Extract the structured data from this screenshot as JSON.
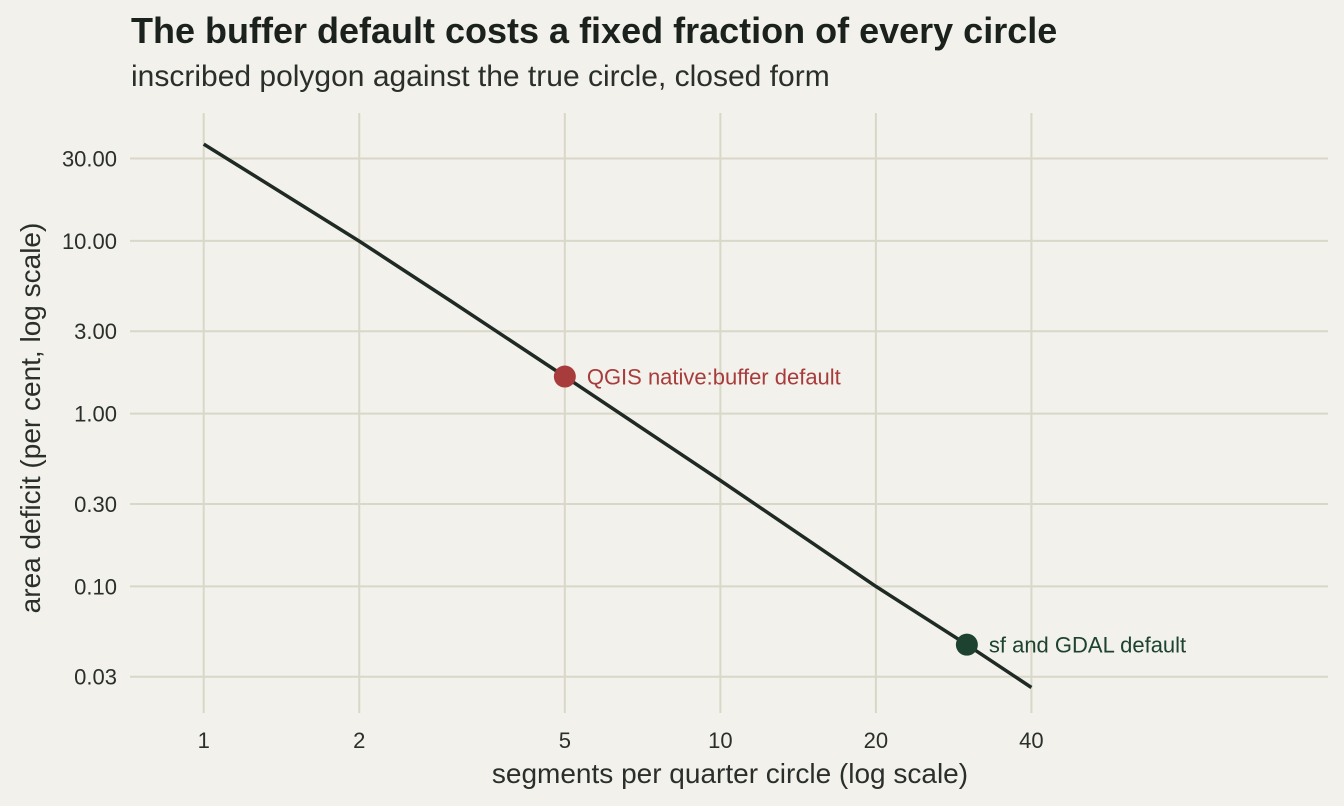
{
  "chart_data": {
    "type": "line",
    "title": "The buffer default costs a fixed fraction of every circle",
    "subtitle": "inscribed polygon against the true circle, closed form",
    "xlabel": "segments per quarter circle (log scale)",
    "ylabel": "area deficit (per cent, log scale)",
    "x_scale": "log",
    "y_scale": "log",
    "xlim": [
      0.72,
      150
    ],
    "ylim": [
      0.0185,
      55
    ],
    "x_ticks": [
      1,
      2,
      5,
      10,
      20,
      40
    ],
    "x_tick_labels": [
      "1",
      "2",
      "5",
      "10",
      "20",
      "40"
    ],
    "y_ticks": [
      30,
      10,
      3,
      1,
      0.3,
      0.1,
      0.03
    ],
    "y_tick_labels": [
      "30.00",
      "10.00",
      "3.00",
      "1.00",
      "0.30",
      "0.10",
      "0.03"
    ],
    "grid": true,
    "series": [
      {
        "x": [
          1,
          2,
          3,
          5,
          8,
          10,
          15,
          20,
          30,
          40
        ],
        "y": [
          36.34,
          9.97,
          4.51,
          1.64,
          0.64,
          0.41,
          0.18,
          0.1,
          0.046,
          0.026
        ],
        "color": "#1f2a24"
      }
    ],
    "annotations": [
      {
        "x": 5,
        "y": 1.64,
        "label": "QGIS native:buffer default",
        "color": "#a83c3c"
      },
      {
        "x": 30,
        "y": 0.046,
        "label": "sf and GDAL default",
        "color": "#1d4330"
      }
    ]
  }
}
